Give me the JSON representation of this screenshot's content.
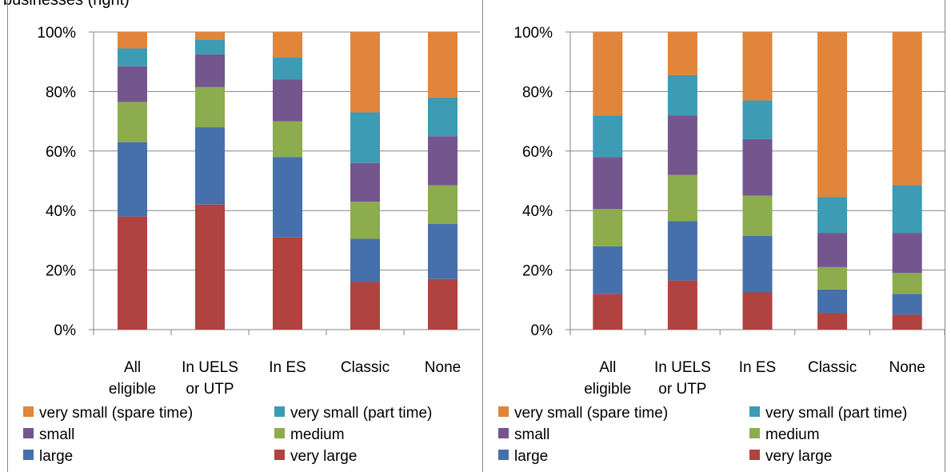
{
  "caption": "businesses (right)",
  "colors": {
    "very_large": "#b0423f",
    "large": "#4670ab",
    "medium": "#8cac4d",
    "small": "#74568f",
    "very_small_part_time": "#3d9bb4",
    "very_small_spare_time": "#e0853a"
  },
  "chart_data": [
    {
      "type": "bar",
      "stacked": true,
      "title": "",
      "xlabel": "",
      "ylabel": "",
      "ylim": [
        0,
        100
      ],
      "yticks": [
        "0%",
        "20%",
        "40%",
        "60%",
        "80%",
        "100%"
      ],
      "categories": [
        [
          "All",
          "eligible"
        ],
        [
          "In UELS",
          "or UTP"
        ],
        [
          "In ES"
        ],
        [
          "Classic"
        ],
        [
          "None"
        ]
      ],
      "series": [
        {
          "name": "very large",
          "key": "very_large",
          "values": [
            38,
            42,
            31,
            16,
            17
          ]
        },
        {
          "name": "large",
          "key": "large",
          "values": [
            25,
            26,
            27,
            14.5,
            18.5
          ]
        },
        {
          "name": "medium",
          "key": "medium",
          "values": [
            13.5,
            13.5,
            12,
            12.5,
            13
          ]
        },
        {
          "name": "small",
          "key": "small",
          "values": [
            12,
            11,
            14,
            13,
            16.5
          ]
        },
        {
          "name": "very small (part time)",
          "key": "very_small_part_time",
          "values": [
            6,
            5,
            7.5,
            17,
            13
          ]
        },
        {
          "name": "very small (spare time)",
          "key": "very_small_spare_time",
          "values": [
            5.5,
            2.5,
            8.5,
            27,
            22
          ]
        }
      ],
      "legend": {
        "position": "bottom",
        "columns": 2
      }
    },
    {
      "type": "bar",
      "stacked": true,
      "title": "",
      "xlabel": "",
      "ylabel": "",
      "ylim": [
        0,
        100
      ],
      "yticks": [
        "0%",
        "20%",
        "40%",
        "60%",
        "80%",
        "100%"
      ],
      "categories": [
        [
          "All",
          "eligible"
        ],
        [
          "In UELS",
          "or UTP"
        ],
        [
          "In ES"
        ],
        [
          "Classic"
        ],
        [
          "None"
        ]
      ],
      "series": [
        {
          "name": "very large",
          "key": "very_large",
          "values": [
            12,
            16.5,
            12.5,
            5.5,
            5
          ]
        },
        {
          "name": "large",
          "key": "large",
          "values": [
            16,
            20,
            19,
            8,
            7
          ]
        },
        {
          "name": "medium",
          "key": "medium",
          "values": [
            12.5,
            15.5,
            13.5,
            7.5,
            7
          ]
        },
        {
          "name": "small",
          "key": "small",
          "values": [
            17.5,
            20,
            19,
            11.5,
            13.5
          ]
        },
        {
          "name": "very small (part time)",
          "key": "very_small_part_time",
          "values": [
            14,
            13.5,
            13,
            12,
            16
          ]
        },
        {
          "name": "very small (spare time)",
          "key": "very_small_spare_time",
          "values": [
            28,
            14.5,
            23,
            55.5,
            51.5
          ]
        }
      ],
      "legend": {
        "position": "bottom",
        "columns": 2
      }
    }
  ]
}
